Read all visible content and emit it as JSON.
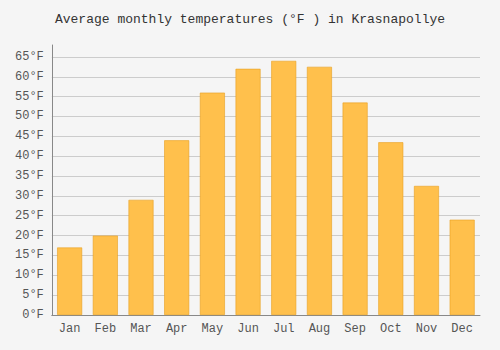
{
  "chart_data": {
    "type": "bar",
    "title": "Average monthly temperatures (°F ) in Krasnapollye",
    "categories": [
      "Jan",
      "Feb",
      "Mar",
      "Apr",
      "May",
      "Jun",
      "Jul",
      "Aug",
      "Sep",
      "Oct",
      "Nov",
      "Dec"
    ],
    "values": [
      17,
      20,
      29,
      44,
      56,
      62,
      64,
      62.5,
      53.5,
      43.5,
      32.5,
      24
    ],
    "color": "#FFC04C",
    "ylim": [
      0,
      68
    ],
    "yticks": [
      {
        "value": 0,
        "label": "0°F"
      },
      {
        "value": 5,
        "label": "5°F"
      },
      {
        "value": 10,
        "label": "10°F"
      },
      {
        "value": 15,
        "label": "15°F"
      },
      {
        "value": 20,
        "label": "20°F"
      },
      {
        "value": 25,
        "label": "25°F"
      },
      {
        "value": 30,
        "label": "30°F"
      },
      {
        "value": 35,
        "label": "35°F"
      },
      {
        "value": 40,
        "label": "40°F"
      },
      {
        "value": 45,
        "label": "45°F"
      },
      {
        "value": 50,
        "label": "50°F"
      },
      {
        "value": 55,
        "label": "55°F"
      },
      {
        "value": 60,
        "label": "60°F"
      },
      {
        "value": 65,
        "label": "65°F"
      }
    ],
    "grid": true
  }
}
